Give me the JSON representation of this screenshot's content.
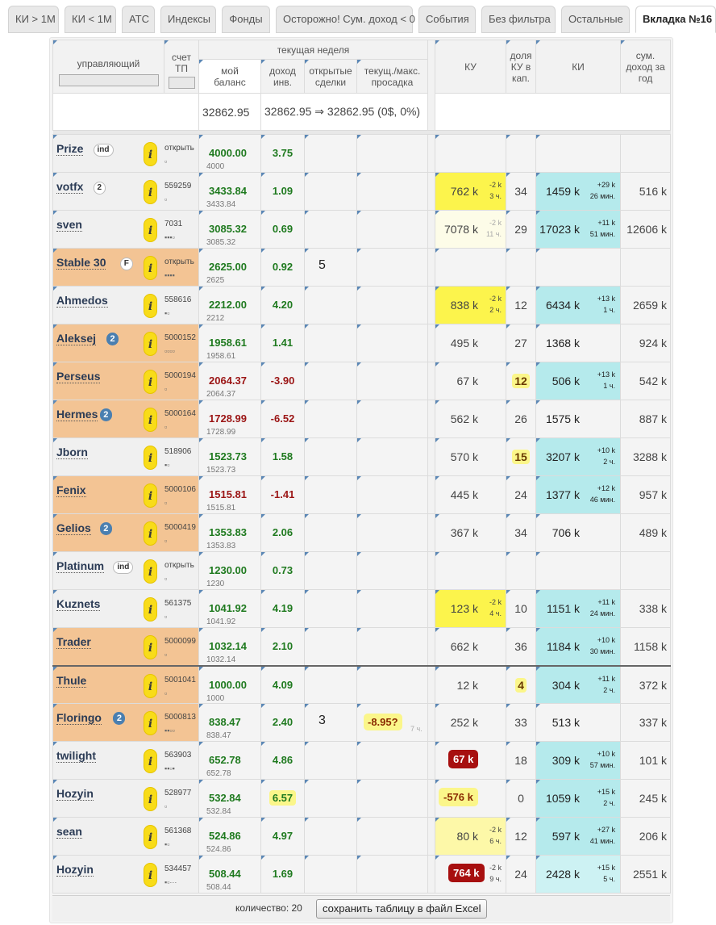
{
  "tabs": [
    "КИ > 1М",
    "КИ < 1М",
    "АТС",
    "Индексы",
    "Фонды",
    "Осторожно! Сум. доход < 0",
    "События",
    "Без фильтра",
    "Остальные",
    "Вкладка №16"
  ],
  "header": {
    "manager": "управляющий",
    "account": "счет ТП",
    "current_week": "текущая неделя",
    "my_balance": "мой баланс",
    "income_inv": "доход инв.",
    "open_deals": "открытые сделки",
    "drawdown": "текущ./макс. просадка",
    "ku": "КУ",
    "ku_share": "доля КУ в кап.",
    "ki": "КИ",
    "sum_income": "сум. доход за год"
  },
  "summary": {
    "balance": "32862.95",
    "income": "32862.95 ⇒ 32862.95 (0$, 0%)"
  },
  "rows": [
    {
      "name": "Prize",
      "badge": "ind",
      "badge_type": "white",
      "account": "открыть",
      "squares": "▫",
      "balance": "4000.00",
      "balance_sub": "4000",
      "sign": "pos",
      "income": "3.75",
      "deals": "",
      "drawdown": "",
      "dd_age": "",
      "ku": "",
      "ku_d1": "",
      "ku_d2": "",
      "ku_style": "",
      "share": "",
      "share_hl": false,
      "ki": "",
      "ki_d1": "",
      "ki_d2": "",
      "ki_style": "",
      "sum": "",
      "peach": false
    },
    {
      "name": "votfx",
      "badge": "2",
      "badge_type": "white",
      "account": "559259",
      "squares": "▫",
      "balance": "3433.84",
      "balance_sub": "3433.84",
      "sign": "pos",
      "income": "1.09",
      "deals": "",
      "drawdown": "",
      "dd_age": "",
      "ku": "762 k",
      "ku_d1": "-2 k",
      "ku_d2": "3 ч.",
      "ku_style": "yellow",
      "share": "34",
      "share_hl": false,
      "ki": "1459 k",
      "ki_d1": "+29 k",
      "ki_d2": "26 мин.",
      "ki_style": "cyan",
      "sum": "516 k",
      "peach": false
    },
    {
      "name": "sven",
      "badge": "",
      "badge_type": "",
      "account": "7031",
      "squares": "▪▪▪▫",
      "balance": "3085.32",
      "balance_sub": "3085.32",
      "sign": "pos",
      "income": "0.69",
      "deals": "",
      "drawdown": "",
      "dd_age": "",
      "ku": "7078 k",
      "ku_d1": "-2 k",
      "ku_d2": "11 ч.",
      "ku_style": "light",
      "share": "29",
      "share_hl": false,
      "ki": "17023 k",
      "ki_d1": "+11 k",
      "ki_d2": "51 мин.",
      "ki_style": "cyan",
      "sum": "12606 k",
      "peach": false
    },
    {
      "name": "Stable 30",
      "badge": "F",
      "badge_type": "white",
      "account": "открыть",
      "squares": "▪▪▪▪",
      "balance": "2625.00",
      "balance_sub": "2625",
      "sign": "pos",
      "income": "0.92",
      "deals": "5",
      "drawdown": "",
      "dd_age": "",
      "ku": "",
      "ku_d1": "",
      "ku_d2": "",
      "ku_style": "",
      "share": "",
      "share_hl": false,
      "ki": "",
      "ki_d1": "",
      "ki_d2": "",
      "ki_style": "",
      "sum": "",
      "peach": true
    },
    {
      "name": "Ahmedos",
      "badge": "",
      "badge_type": "",
      "account": "558616",
      "squares": "▪▫",
      "balance": "2212.00",
      "balance_sub": "2212",
      "sign": "pos",
      "income": "4.20",
      "deals": "",
      "drawdown": "",
      "dd_age": "",
      "ku": "838 k",
      "ku_d1": "-2 k",
      "ku_d2": "2 ч.",
      "ku_style": "yellow",
      "share": "12",
      "share_hl": false,
      "ki": "6434 k",
      "ki_d1": "+13 k",
      "ki_d2": "1 ч.",
      "ki_style": "cyan",
      "sum": "2659 k",
      "peach": false
    },
    {
      "name": "Aleksej",
      "badge": "2",
      "badge_type": "blue",
      "account": "5000152",
      "squares": "▫▫▫▫",
      "balance": "1958.61",
      "balance_sub": "1958.61",
      "sign": "pos",
      "income": "1.41",
      "deals": "",
      "drawdown": "",
      "dd_age": "",
      "ku": "495 k",
      "ku_d1": "",
      "ku_d2": "",
      "ku_style": "",
      "share": "27",
      "share_hl": false,
      "ki": "1368 k",
      "ki_d1": "",
      "ki_d2": "",
      "ki_style": "",
      "sum": "924 k",
      "peach": true
    },
    {
      "name": "Perseus",
      "badge": "",
      "badge_type": "",
      "account": "5000194",
      "squares": "▫",
      "balance": "2064.37",
      "balance_sub": "2064.37",
      "sign": "neg",
      "income": "-3.90",
      "deals": "",
      "drawdown": "",
      "dd_age": "",
      "ku": "67 k",
      "ku_d1": "",
      "ku_d2": "",
      "ku_style": "",
      "share": "12",
      "share_hl": true,
      "ki": "506 k",
      "ki_d1": "+13 k",
      "ki_d2": "1 ч.",
      "ki_style": "cyan",
      "sum": "542 k",
      "peach": true
    },
    {
      "name": "Hermes",
      "badge": "2",
      "badge_type": "blue",
      "account": "5000164",
      "squares": "▫",
      "balance": "1728.99",
      "balance_sub": "1728.99",
      "sign": "neg",
      "income": "-6.52",
      "deals": "",
      "drawdown": "",
      "dd_age": "",
      "ku": "562 k",
      "ku_d1": "",
      "ku_d2": "",
      "ku_style": "",
      "share": "26",
      "share_hl": false,
      "ki": "1575 k",
      "ki_d1": "",
      "ki_d2": "",
      "ki_style": "",
      "sum": "887 k",
      "peach": true
    },
    {
      "name": "Jborn",
      "badge": "",
      "badge_type": "",
      "account": "518906",
      "squares": "▪▫",
      "balance": "1523.73",
      "balance_sub": "1523.73",
      "sign": "pos",
      "income": "1.58",
      "deals": "",
      "drawdown": "",
      "dd_age": "",
      "ku": "570 k",
      "ku_d1": "",
      "ku_d2": "",
      "ku_style": "",
      "share": "15",
      "share_hl": true,
      "ki": "3207 k",
      "ki_d1": "+10 k",
      "ki_d2": "2 ч.",
      "ki_style": "cyan",
      "sum": "3288 k",
      "peach": false
    },
    {
      "name": "Fenix",
      "badge": "",
      "badge_type": "",
      "account": "5000106",
      "squares": "▫",
      "balance": "1515.81",
      "balance_sub": "1515.81",
      "sign": "neg",
      "income": "-1.41",
      "deals": "",
      "drawdown": "",
      "dd_age": "",
      "ku": "445 k",
      "ku_d1": "",
      "ku_d2": "",
      "ku_style": "",
      "share": "24",
      "share_hl": false,
      "ki": "1377 k",
      "ki_d1": "+12 k",
      "ki_d2": "46 мин.",
      "ki_style": "cyan",
      "sum": "957 k",
      "peach": true
    },
    {
      "name": "Gelios",
      "badge": "2",
      "badge_type": "blue",
      "account": "5000419",
      "squares": "▫",
      "balance": "1353.83",
      "balance_sub": "1353.83",
      "sign": "pos",
      "income": "2.06",
      "deals": "",
      "drawdown": "",
      "dd_age": "",
      "ku": "367 k",
      "ku_d1": "",
      "ku_d2": "",
      "ku_style": "",
      "share": "34",
      "share_hl": false,
      "ki": "706 k",
      "ki_d1": "",
      "ki_d2": "",
      "ki_style": "",
      "sum": "489 k",
      "peach": true
    },
    {
      "name": "Platinum",
      "badge": "ind",
      "badge_type": "white",
      "account": "открыть",
      "squares": "▫",
      "balance": "1230.00",
      "balance_sub": "1230",
      "sign": "pos",
      "income": "0.73",
      "deals": "",
      "drawdown": "",
      "dd_age": "",
      "ku": "",
      "ku_d1": "",
      "ku_d2": "",
      "ku_style": "",
      "share": "",
      "share_hl": false,
      "ki": "",
      "ki_d1": "",
      "ki_d2": "",
      "ki_style": "",
      "sum": "",
      "peach": false
    },
    {
      "name": "Kuznets",
      "badge": "",
      "badge_type": "",
      "account": "561375",
      "squares": "▫",
      "balance": "1041.92",
      "balance_sub": "1041.92",
      "sign": "pos",
      "income": "4.19",
      "deals": "",
      "drawdown": "",
      "dd_age": "",
      "ku": "123 k",
      "ku_d1": "-2 k",
      "ku_d2": "4 ч.",
      "ku_style": "yellow",
      "share": "10",
      "share_hl": false,
      "ki": "1151 k",
      "ki_d1": "+11 k",
      "ki_d2": "24 мин.",
      "ki_style": "cyan",
      "sum": "338 k",
      "peach": false
    },
    {
      "name": "Trader",
      "badge": "",
      "badge_type": "",
      "account": "5000099",
      "squares": "▫",
      "balance": "1032.14",
      "balance_sub": "1032.14",
      "sign": "pos",
      "income": "2.10",
      "deals": "",
      "drawdown": "",
      "dd_age": "",
      "ku": "662 k",
      "ku_d1": "",
      "ku_d2": "",
      "ku_style": "",
      "share": "36",
      "share_hl": false,
      "ki": "1184 k",
      "ki_d1": "+10 k",
      "ki_d2": "30 мин.",
      "ki_style": "cyan",
      "sum": "1158 k",
      "peach": true
    },
    {
      "name": "Thule",
      "badge": "",
      "badge_type": "",
      "account": "5001041",
      "squares": "▫",
      "balance": "1000.00",
      "balance_sub": "1000",
      "sign": "pos",
      "income": "4.09",
      "deals": "",
      "drawdown": "",
      "dd_age": "",
      "ku": "12 k",
      "ku_d1": "",
      "ku_d2": "",
      "ku_style": "",
      "share": "4",
      "share_hl": true,
      "ki": "304 k",
      "ki_d1": "+11 k",
      "ki_d2": "2 ч.",
      "ki_style": "cyan",
      "sum": "372 k",
      "peach": true
    },
    {
      "name": "Floringo",
      "badge": "2",
      "badge_type": "blue",
      "account": "5000813",
      "squares": "▪▪▫▫",
      "balance": "838.47",
      "balance_sub": "838.47",
      "sign": "pos",
      "income": "2.40",
      "deals": "3",
      "drawdown": "-8.95?",
      "dd_age": "7 ч.",
      "ku": "252 k",
      "ku_d1": "",
      "ku_d2": "",
      "ku_style": "",
      "share": "33",
      "share_hl": false,
      "ki": "513 k",
      "ki_d1": "",
      "ki_d2": "",
      "ki_style": "",
      "sum": "337 k",
      "peach": true
    },
    {
      "name": "twilight",
      "badge": "",
      "badge_type": "",
      "account": "563903",
      "squares": "▪▪▫▪",
      "balance": "652.78",
      "balance_sub": "652.78",
      "sign": "pos",
      "income": "4.86",
      "deals": "",
      "drawdown": "",
      "dd_age": "",
      "ku": "67 k",
      "ku_d1": "",
      "ku_d2": "",
      "ku_style": "chip-red",
      "share": "18",
      "share_hl": false,
      "ki": "309 k",
      "ki_d1": "+10 k",
      "ki_d2": "57 мин.",
      "ki_style": "cyan",
      "sum": "101 k",
      "peach": false
    },
    {
      "name": "Hozyin",
      "badge": "",
      "badge_type": "",
      "account": "528977",
      "squares": "▫",
      "balance": "532.84",
      "balance_sub": "532.84",
      "sign": "pos",
      "income": "6.57",
      "income_hl": true,
      "deals": "",
      "drawdown": "",
      "dd_age": "",
      "ku": "-576 k",
      "ku_d1": "",
      "ku_d2": "",
      "ku_style": "chip-yellow",
      "share": "0",
      "share_hl": false,
      "ki": "1059 k",
      "ki_d1": "+15 k",
      "ki_d2": "2 ч.",
      "ki_style": "cyan",
      "sum": "245 k",
      "peach": false
    },
    {
      "name": "sean",
      "badge": "",
      "badge_type": "",
      "account": "561368",
      "squares": "▪▫",
      "balance": "524.86",
      "balance_sub": "524.86",
      "sign": "pos",
      "income": "4.97",
      "deals": "",
      "drawdown": "",
      "dd_age": "",
      "ku": "80 k",
      "ku_d1": "-2 k",
      "ku_d2": "6 ч.",
      "ku_style": "lightyellow",
      "share": "12",
      "share_hl": false,
      "ki": "597 k",
      "ki_d1": "+27 k",
      "ki_d2": "41 мин.",
      "ki_style": "cyan",
      "sum": "206 k",
      "peach": false
    },
    {
      "name": "Hozyin",
      "badge": "",
      "badge_type": "",
      "account": "534457",
      "squares": "▪▫···",
      "balance": "508.44",
      "balance_sub": "508.44",
      "sign": "pos",
      "income": "1.69",
      "deals": "",
      "drawdown": "",
      "dd_age": "",
      "ku": "764 k",
      "ku_d1": "-2 k",
      "ku_d2": "9 ч.",
      "ku_style": "chip-red",
      "share": "24",
      "share_hl": false,
      "ki": "2428 k",
      "ki_d1": "+15 k",
      "ki_d2": "5 ч.",
      "ki_style": "cyan-light",
      "sum": "2551 k",
      "peach": false
    }
  ],
  "info_glyph": "i",
  "footer": {
    "count": "количество: 20",
    "export_button": "сохранить таблицу в файл Excel"
  }
}
